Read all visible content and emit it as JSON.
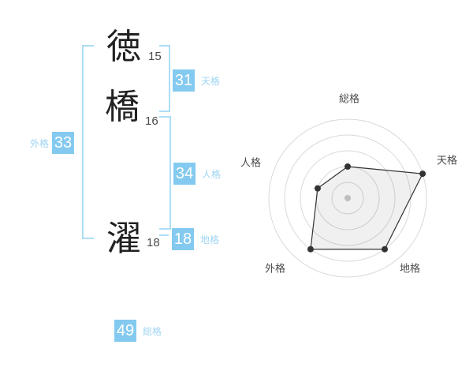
{
  "colors": {
    "box_bg": "#84caf0",
    "box_text": "#ffffff",
    "label_blue": "#9fd5f3",
    "bracket_blue": "#aeddf6",
    "kanji_color": "#222222",
    "strokes_color": "#4a4a4a",
    "radar_grid": "#d9d9d9",
    "radar_line": "#333333",
    "radar_fill": "rgba(0,0,0,0.06)",
    "radar_label": "#4a4a4a",
    "radar_center_dot": "#c9c9c9"
  },
  "name_diagram": {
    "characters": [
      {
        "char": "徳",
        "strokes": "15"
      },
      {
        "char": "橋",
        "strokes": "16"
      },
      {
        "char": "濯",
        "strokes": "18"
      }
    ],
    "values": {
      "tenkaku": {
        "label": "天格",
        "value": "31"
      },
      "jinkaku": {
        "label": "人格",
        "value": "34"
      },
      "chikaku": {
        "label": "地格",
        "value": "18"
      },
      "gaikaku": {
        "label": "外格",
        "value": "33"
      },
      "soukaku": {
        "label": "総格",
        "value": "49"
      }
    }
  },
  "chart_data": {
    "type": "radar",
    "axes": [
      "総格",
      "天格",
      "地格",
      "外格",
      "人格"
    ],
    "values": [
      2,
      5,
      4,
      4,
      2
    ],
    "max": 5,
    "rings": 5,
    "grid": "concentric-circles",
    "legend": "none"
  }
}
